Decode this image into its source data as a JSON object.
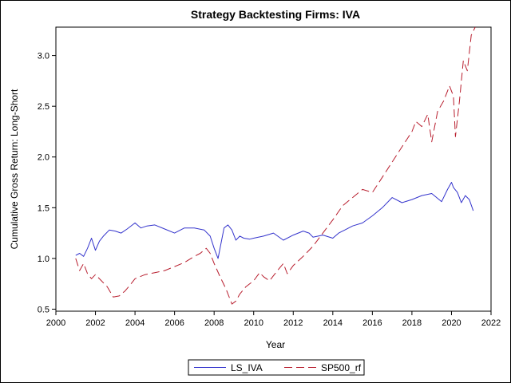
{
  "chart_data": {
    "type": "line",
    "title": "Strategy Backtesting  Firms: IVA",
    "xlabel": "Year",
    "ylabel": "Cumulative Gross Return: Long-Short",
    "xlim": [
      2000,
      2022
    ],
    "ylim": [
      0.48,
      3.28
    ],
    "x_ticks": [
      2000,
      2002,
      2004,
      2006,
      2008,
      2010,
      2012,
      2014,
      2016,
      2018,
      2020,
      2022
    ],
    "y_ticks": [
      0.5,
      1.0,
      1.5,
      2.0,
      2.5,
      3.0
    ],
    "x_tick_labels": [
      "2000",
      "2002",
      "2004",
      "2006",
      "2008",
      "2010",
      "2012",
      "2014",
      "2016",
      "2018",
      "2020",
      "2022"
    ],
    "y_tick_labels": [
      "0.5",
      "1.0",
      "1.5",
      "2.0",
      "2.5",
      "3.0"
    ],
    "grid": false,
    "legend_position": "bottom-center",
    "series": [
      {
        "name": "LS_IVA",
        "color": "#3333cc",
        "dash": "solid",
        "x": [
          2001.0,
          2001.2,
          2001.4,
          2001.6,
          2001.8,
          2002.0,
          2002.2,
          2002.4,
          2002.7,
          2003.0,
          2003.3,
          2003.6,
          2004.0,
          2004.3,
          2004.6,
          2005.0,
          2005.5,
          2006.0,
          2006.5,
          2007.0,
          2007.5,
          2007.8,
          2008.0,
          2008.2,
          2008.5,
          2008.7,
          2008.9,
          2009.1,
          2009.3,
          2009.5,
          2009.8,
          2010.0,
          2010.5,
          2011.0,
          2011.5,
          2012.0,
          2012.5,
          2012.8,
          2013.0,
          2013.5,
          2014.0,
          2014.3,
          2014.6,
          2015.0,
          2015.5,
          2016.0,
          2016.5,
          2017.0,
          2017.5,
          2018.0,
          2018.5,
          2019.0,
          2019.5,
          2019.8,
          2020.0,
          2020.1,
          2020.3,
          2020.5,
          2020.7,
          2020.9,
          2021.1
        ],
        "y": [
          1.03,
          1.05,
          1.02,
          1.1,
          1.2,
          1.08,
          1.17,
          1.22,
          1.28,
          1.27,
          1.25,
          1.29,
          1.35,
          1.3,
          1.32,
          1.33,
          1.29,
          1.25,
          1.3,
          1.3,
          1.28,
          1.22,
          1.1,
          1.0,
          1.3,
          1.33,
          1.28,
          1.18,
          1.22,
          1.2,
          1.19,
          1.2,
          1.22,
          1.25,
          1.18,
          1.23,
          1.27,
          1.25,
          1.21,
          1.23,
          1.2,
          1.25,
          1.28,
          1.32,
          1.35,
          1.42,
          1.5,
          1.6,
          1.55,
          1.58,
          1.62,
          1.64,
          1.56,
          1.68,
          1.75,
          1.7,
          1.65,
          1.55,
          1.62,
          1.58,
          1.47
        ]
      },
      {
        "name": "SP500_rf",
        "color": "#b81e2e",
        "dash": "long-dash",
        "x": [
          2001.0,
          2001.2,
          2001.4,
          2001.6,
          2001.8,
          2002.0,
          2002.3,
          2002.6,
          2002.9,
          2003.2,
          2003.5,
          2003.8,
          2004.0,
          2004.5,
          2005.0,
          2005.5,
          2006.0,
          2006.5,
          2007.0,
          2007.3,
          2007.6,
          2007.8,
          2008.0,
          2008.3,
          2008.6,
          2008.9,
          2009.1,
          2009.3,
          2009.6,
          2010.0,
          2010.3,
          2010.5,
          2010.8,
          2011.2,
          2011.5,
          2011.7,
          2012.0,
          2012.5,
          2013.0,
          2013.5,
          2014.0,
          2014.5,
          2015.0,
          2015.5,
          2016.0,
          2016.5,
          2017.0,
          2017.5,
          2018.0,
          2018.2,
          2018.5,
          2018.8,
          2019.0,
          2019.3,
          2019.6,
          2019.9,
          2020.1,
          2020.2,
          2020.4,
          2020.6,
          2020.8,
          2021.0,
          2021.2
        ],
        "y": [
          1.0,
          0.88,
          0.95,
          0.85,
          0.8,
          0.84,
          0.78,
          0.72,
          0.62,
          0.63,
          0.68,
          0.75,
          0.8,
          0.84,
          0.86,
          0.88,
          0.92,
          0.96,
          1.02,
          1.05,
          1.1,
          1.05,
          0.95,
          0.82,
          0.7,
          0.55,
          0.58,
          0.65,
          0.72,
          0.78,
          0.86,
          0.82,
          0.78,
          0.88,
          0.95,
          0.85,
          0.93,
          1.02,
          1.12,
          1.25,
          1.38,
          1.52,
          1.6,
          1.68,
          1.65,
          1.8,
          1.95,
          2.1,
          2.25,
          2.35,
          2.3,
          2.42,
          2.15,
          2.45,
          2.55,
          2.7,
          2.6,
          2.2,
          2.55,
          2.95,
          2.85,
          3.2,
          3.28
        ]
      }
    ]
  }
}
